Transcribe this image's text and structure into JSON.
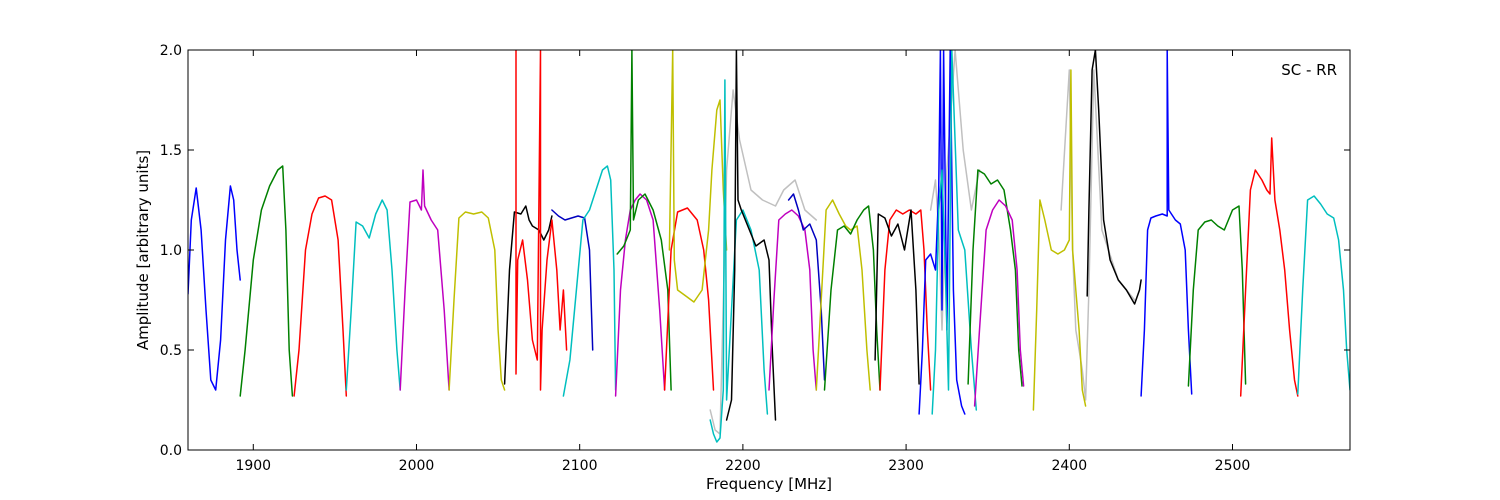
{
  "chart_data": {
    "type": "line",
    "annotation": "SC - RR",
    "xlabel": "Frequency [MHz]",
    "ylabel": "Amplitude [arbitrary units]",
    "xlim": [
      1860,
      2572
    ],
    "ylim": [
      0.0,
      2.0
    ],
    "xticks": [
      1900,
      2000,
      2100,
      2200,
      2300,
      2400,
      2500
    ],
    "yticks": [
      0.0,
      0.5,
      1.0,
      1.5,
      2.0
    ],
    "xtick_labels": [
      "1900",
      "2000",
      "2100",
      "2200",
      "2300",
      "2400",
      "2500"
    ],
    "ytick_labels": [
      "0.0",
      "0.5",
      "1.0",
      "1.5",
      "2.0"
    ],
    "series": [
      {
        "color": "#c0c0c0",
        "x": [
          2180,
          2183,
          2186,
          2190,
          2194,
          2198,
          2205,
          2212,
          2220,
          2225,
          2232,
          2238,
          2245
        ],
        "y": [
          0.2,
          0.1,
          0.08,
          1.4,
          1.8,
          1.55,
          1.3,
          1.25,
          1.22,
          1.3,
          1.35,
          1.2,
          1.15
        ]
      },
      {
        "color": "#c0c0c0",
        "x": [
          2315,
          2318,
          2320,
          2322,
          2325,
          2330,
          2335,
          2340,
          2345
        ],
        "y": [
          1.2,
          1.35,
          1.1,
          0.6,
          1.4,
          2.0,
          1.5,
          1.2,
          1.4
        ]
      },
      {
        "color": "#c0c0c0",
        "x": [
          2395,
          2400,
          2402,
          2404,
          2406,
          2408,
          2410,
          2412,
          2415,
          2420,
          2430,
          2440
        ],
        "y": [
          1.2,
          1.9,
          1.0,
          0.6,
          0.5,
          0.4,
          0.25,
          0.8,
          1.9,
          1.1,
          0.85,
          0.75
        ]
      },
      {
        "color": "#0000ff",
        "x": [
          1860,
          1862,
          1865,
          1868,
          1871,
          1874,
          1877,
          1880,
          1883,
          1886,
          1888,
          1890,
          1892
        ],
        "y": [
          0.78,
          1.15,
          1.31,
          1.1,
          0.7,
          0.35,
          0.3,
          0.55,
          1.05,
          1.32,
          1.25,
          1.0,
          0.85
        ]
      },
      {
        "color": "#008000",
        "x": [
          1892,
          1895,
          1900,
          1905,
          1910,
          1915,
          1918,
          1920,
          1922,
          1924
        ],
        "y": [
          0.27,
          0.5,
          0.95,
          1.2,
          1.32,
          1.4,
          1.42,
          1.1,
          0.5,
          0.27
        ]
      },
      {
        "color": "#ff0000",
        "x": [
          1925,
          1928,
          1932,
          1936,
          1940,
          1944,
          1948,
          1952,
          1955,
          1957
        ],
        "y": [
          0.27,
          0.5,
          1.0,
          1.18,
          1.26,
          1.27,
          1.25,
          1.05,
          0.6,
          0.27
        ]
      },
      {
        "color": "#00bfbf",
        "x": [
          1957,
          1960,
          1963,
          1967,
          1971,
          1975,
          1979,
          1982,
          1985,
          1988,
          1990
        ],
        "y": [
          0.3,
          0.7,
          1.14,
          1.12,
          1.06,
          1.18,
          1.25,
          1.2,
          0.9,
          0.5,
          0.3
        ]
      },
      {
        "color": "#bf00bf",
        "x": [
          1990,
          1993,
          1996,
          2000,
          2003,
          2004,
          2005,
          2009,
          2013,
          2017,
          2020
        ],
        "y": [
          0.3,
          0.8,
          1.24,
          1.25,
          1.2,
          1.4,
          1.22,
          1.15,
          1.1,
          0.7,
          0.3
        ]
      },
      {
        "color": "#bfbf00",
        "x": [
          2020,
          2023,
          2026,
          2030,
          2035,
          2040,
          2044,
          2048,
          2050,
          2052,
          2054
        ],
        "y": [
          0.3,
          0.75,
          1.16,
          1.19,
          1.18,
          1.19,
          1.16,
          1.0,
          0.6,
          0.35,
          0.3
        ]
      },
      {
        "color": "#000000",
        "x": [
          2054,
          2057,
          2060,
          2064,
          2067,
          2069,
          2071,
          2075,
          2078,
          2081,
          2083
        ],
        "y": [
          0.33,
          0.9,
          1.19,
          1.18,
          1.22,
          1.15,
          1.12,
          1.1,
          1.05,
          1.1,
          1.17
        ]
      },
      {
        "color": "#ff0000",
        "x": [
          2061,
          2061,
          2062,
          2065,
          2068,
          2071,
          2074,
          2076,
          2076,
          2077,
          2080,
          2083,
          2086,
          2088,
          2090,
          2092
        ],
        "y": [
          2.0,
          0.38,
          0.95,
          1.05,
          0.85,
          0.55,
          0.45,
          2.0,
          0.3,
          0.6,
          0.95,
          1.15,
          0.9,
          0.6,
          0.8,
          0.5
        ]
      },
      {
        "color": "#0000bf",
        "x": [
          2083,
          2087,
          2091,
          2095,
          2099,
          2103,
          2106,
          2108
        ],
        "y": [
          1.2,
          1.17,
          1.15,
          1.16,
          1.17,
          1.16,
          1.0,
          0.5
        ]
      },
      {
        "color": "#00bfbf",
        "x": [
          2090,
          2094,
          2098,
          2102,
          2106,
          2110,
          2114,
          2117,
          2119,
          2121,
          2122
        ],
        "y": [
          0.27,
          0.45,
          0.8,
          1.15,
          1.2,
          1.3,
          1.4,
          1.42,
          1.35,
          0.9,
          0.3
        ]
      },
      {
        "color": "#bf00bf",
        "x": [
          2122,
          2125,
          2128,
          2131,
          2134,
          2137,
          2141,
          2145,
          2149,
          2152
        ],
        "y": [
          0.27,
          0.8,
          1.05,
          1.2,
          1.25,
          1.28,
          1.25,
          1.15,
          0.7,
          0.3
        ]
      },
      {
        "color": "#008000",
        "x": [
          2123,
          2127,
          2131,
          2132,
          2133,
          2136,
          2140,
          2145,
          2150,
          2154,
          2156
        ],
        "y": [
          0.98,
          1.02,
          1.1,
          2.0,
          1.15,
          1.25,
          1.28,
          1.2,
          1.05,
          0.8,
          0.3
        ]
      },
      {
        "color": "#ff0000",
        "x": [
          2152,
          2156,
          2160,
          2166,
          2172,
          2176,
          2179,
          2182
        ],
        "y": [
          0.3,
          1.0,
          1.19,
          1.21,
          1.15,
          1.0,
          0.75,
          0.3
        ]
      },
      {
        "color": "#bfbf00",
        "x": [
          2155,
          2157,
          2158,
          2160,
          2165,
          2170,
          2175,
          2179,
          2181,
          2184,
          2186,
          2188,
          2190
        ],
        "y": [
          1.0,
          2.0,
          0.95,
          0.8,
          0.77,
          0.74,
          0.8,
          1.1,
          1.4,
          1.7,
          1.75,
          1.3,
          1.0
        ]
      },
      {
        "color": "#00bfbf",
        "x": [
          2180,
          2182,
          2184,
          2186,
          2188,
          2189,
          2190,
          2193,
          2196,
          2200,
          2205,
          2210,
          2213,
          2215
        ],
        "y": [
          0.15,
          0.08,
          0.04,
          0.06,
          0.3,
          1.85,
          0.25,
          0.7,
          1.15,
          1.2,
          1.1,
          0.9,
          0.4,
          0.18
        ]
      },
      {
        "color": "#000000",
        "x": [
          2190,
          2193,
          2195,
          2196,
          2197,
          2199,
          2203,
          2208,
          2213,
          2216,
          2218,
          2220
        ],
        "y": [
          0.15,
          0.25,
          0.9,
          2.0,
          1.25,
          1.2,
          1.12,
          1.02,
          1.05,
          0.95,
          0.5,
          0.15
        ]
      },
      {
        "color": "#bf00bf",
        "x": [
          2216,
          2219,
          2222,
          2226,
          2230,
          2234,
          2238,
          2241,
          2243,
          2245
        ],
        "y": [
          0.3,
          0.75,
          1.15,
          1.18,
          1.2,
          1.17,
          1.1,
          0.9,
          0.5,
          0.3
        ]
      },
      {
        "color": "#0000bf",
        "x": [
          2228,
          2231,
          2234,
          2237,
          2241,
          2245,
          2248,
          2250
        ],
        "y": [
          1.25,
          1.28,
          1.2,
          1.1,
          1.13,
          1.05,
          0.7,
          0.35
        ]
      },
      {
        "color": "#bfbf00",
        "x": [
          2245,
          2248,
          2251,
          2255,
          2259,
          2263,
          2266,
          2270,
          2273,
          2276,
          2278
        ],
        "y": [
          0.3,
          0.75,
          1.2,
          1.25,
          1.18,
          1.12,
          1.1,
          1.12,
          0.9,
          0.5,
          0.3
        ]
      },
      {
        "color": "#008000",
        "x": [
          2250,
          2254,
          2258,
          2262,
          2266,
          2270,
          2274,
          2277,
          2280,
          2282,
          2284
        ],
        "y": [
          0.3,
          0.8,
          1.1,
          1.12,
          1.08,
          1.15,
          1.2,
          1.22,
          1.0,
          0.6,
          0.3
        ]
      },
      {
        "color": "#ff0000",
        "x": [
          2284,
          2287,
          2290,
          2294,
          2298,
          2302,
          2306,
          2309,
          2311,
          2313,
          2315
        ],
        "y": [
          0.3,
          0.9,
          1.15,
          1.2,
          1.18,
          1.2,
          1.18,
          1.2,
          1.0,
          0.6,
          0.3
        ]
      },
      {
        "color": "#000000",
        "x": [
          2281,
          2283,
          2287,
          2291,
          2295,
          2299,
          2303,
          2306,
          2308
        ],
        "y": [
          0.45,
          1.18,
          1.16,
          1.07,
          1.13,
          1.0,
          1.2,
          0.8,
          0.33
        ]
      },
      {
        "color": "#0000ff",
        "x": [
          2308,
          2310,
          2312,
          2315,
          2318,
          2320,
          2321,
          2322,
          2323,
          2325,
          2327,
          2329,
          2331,
          2334,
          2336
        ],
        "y": [
          0.18,
          0.5,
          0.95,
          0.98,
          0.9,
          1.3,
          2.0,
          0.7,
          2.0,
          0.6,
          2.0,
          0.8,
          0.35,
          0.22,
          0.18
        ]
      },
      {
        "color": "#00bfbf",
        "x": [
          2316,
          2318,
          2320,
          2322,
          2324,
          2326,
          2328,
          2332,
          2336,
          2340,
          2343
        ],
        "y": [
          0.18,
          0.5,
          1.2,
          1.4,
          0.9,
          0.3,
          2.0,
          1.1,
          1.0,
          0.5,
          0.2
        ]
      },
      {
        "color": "#008000",
        "x": [
          2338,
          2341,
          2344,
          2348,
          2352,
          2356,
          2360,
          2364,
          2367,
          2369,
          2371
        ],
        "y": [
          0.33,
          1.0,
          1.4,
          1.38,
          1.33,
          1.35,
          1.3,
          1.1,
          0.9,
          0.5,
          0.32
        ]
      },
      {
        "color": "#bf00bf",
        "x": [
          2342,
          2345,
          2349,
          2353,
          2357,
          2361,
          2365,
          2368,
          2370,
          2372
        ],
        "y": [
          0.22,
          0.6,
          1.1,
          1.2,
          1.25,
          1.22,
          1.15,
          0.9,
          0.5,
          0.32
        ]
      },
      {
        "color": "#bfbf00",
        "x": [
          2378,
          2380,
          2382,
          2385,
          2389,
          2393,
          2397,
          2400,
          2401,
          2402,
          2404,
          2406,
          2408,
          2410
        ],
        "y": [
          0.2,
          0.7,
          1.25,
          1.15,
          1.0,
          0.98,
          1.0,
          1.05,
          1.9,
          1.0,
          0.8,
          0.6,
          0.3,
          0.22
        ]
      },
      {
        "color": "#000000",
        "x": [
          2411,
          2412,
          2414,
          2416,
          2418,
          2421,
          2425,
          2430,
          2435,
          2440,
          2443,
          2444
        ],
        "y": [
          0.77,
          1.2,
          1.9,
          2.0,
          1.7,
          1.15,
          0.95,
          0.85,
          0.8,
          0.73,
          0.8,
          0.85
        ]
      },
      {
        "color": "#0000ff",
        "x": [
          2444,
          2446,
          2448,
          2450,
          2453,
          2457,
          2460,
          2460,
          2461,
          2465,
          2468,
          2471,
          2473,
          2475
        ],
        "y": [
          0.27,
          0.6,
          1.1,
          1.16,
          1.17,
          1.18,
          1.17,
          2.0,
          1.2,
          1.15,
          1.13,
          1.0,
          0.6,
          0.28
        ]
      },
      {
        "color": "#008000",
        "x": [
          2473,
          2476,
          2479,
          2483,
          2487,
          2491,
          2495,
          2500,
          2504,
          2506,
          2508
        ],
        "y": [
          0.32,
          0.8,
          1.1,
          1.14,
          1.15,
          1.12,
          1.1,
          1.2,
          1.22,
          0.9,
          0.33
        ]
      },
      {
        "color": "#ff0000",
        "x": [
          2505,
          2508,
          2511,
          2514,
          2518,
          2521,
          2523,
          2524,
          2526,
          2529,
          2532,
          2535,
          2538,
          2540
        ],
        "y": [
          0.27,
          0.8,
          1.3,
          1.4,
          1.35,
          1.3,
          1.28,
          1.56,
          1.25,
          1.1,
          0.9,
          0.6,
          0.35,
          0.27
        ]
      },
      {
        "color": "#00bfbf",
        "x": [
          2540,
          2543,
          2546,
          2550,
          2554,
          2558,
          2562,
          2565,
          2568,
          2570,
          2572
        ],
        "y": [
          0.28,
          0.8,
          1.25,
          1.27,
          1.23,
          1.18,
          1.16,
          1.05,
          0.8,
          0.5,
          0.3
        ]
      }
    ]
  }
}
